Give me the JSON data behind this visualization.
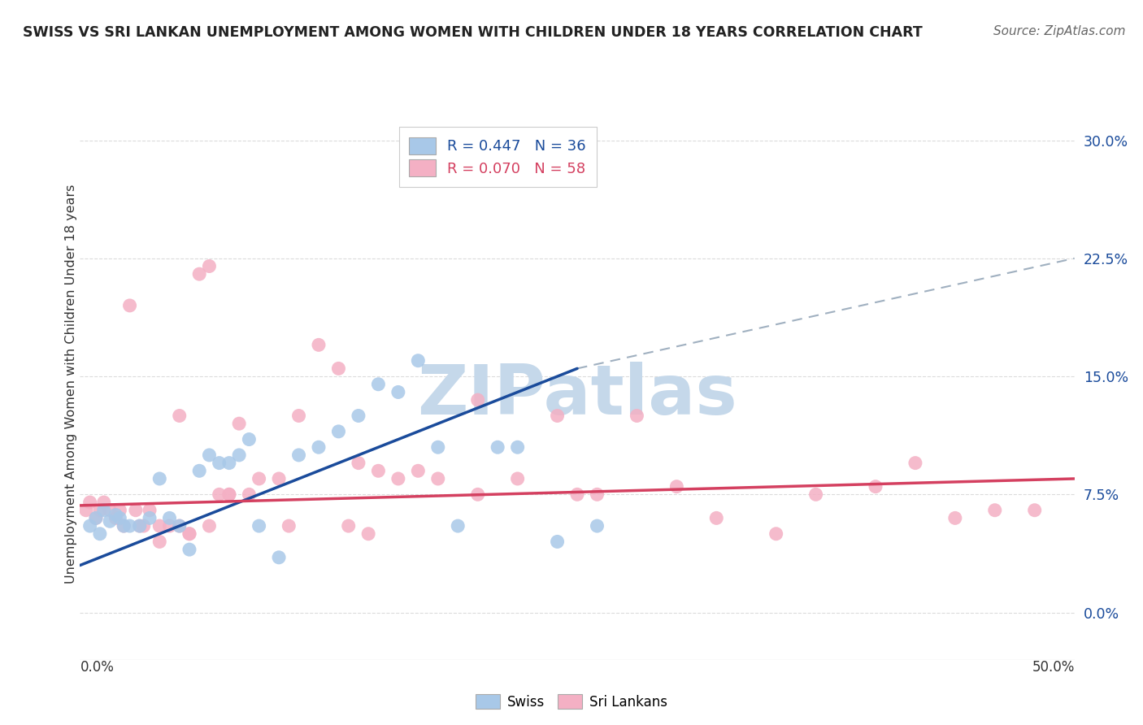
{
  "title": "SWISS VS SRI LANKAN UNEMPLOYMENT AMONG WOMEN WITH CHILDREN UNDER 18 YEARS CORRELATION CHART",
  "source": "Source: ZipAtlas.com",
  "ylabel": "Unemployment Among Women with Children Under 18 years",
  "xlim": [
    0,
    50
  ],
  "ylim": [
    -3,
    32
  ],
  "ytick_vals": [
    0.0,
    7.5,
    15.0,
    22.5,
    30.0
  ],
  "ytick_labels": [
    "0.0%",
    "7.5%",
    "15.0%",
    "22.5%",
    "30.0%"
  ],
  "swiss_color": "#a8c8e8",
  "sri_color": "#f4b0c4",
  "swiss_line_color": "#1a4b9b",
  "sri_line_color": "#d44060",
  "dashed_line_color": "#a0b0c0",
  "watermark_color": "#c5d8ea",
  "background_color": "#ffffff",
  "grid_color": "#cccccc",
  "title_color": "#222222",
  "source_color": "#666666",
  "label_color": "#1a4b9b",
  "swiss_x": [
    0.5,
    0.8,
    1.0,
    1.2,
    1.5,
    1.8,
    2.0,
    2.2,
    2.5,
    3.0,
    3.5,
    4.0,
    4.5,
    5.0,
    5.5,
    6.0,
    6.5,
    7.0,
    7.5,
    8.0,
    8.5,
    9.0,
    10.0,
    11.0,
    12.0,
    13.0,
    14.0,
    15.0,
    16.0,
    17.0,
    18.0,
    19.0,
    21.0,
    22.0,
    24.0,
    26.0
  ],
  "swiss_y": [
    5.5,
    6.0,
    5.0,
    6.5,
    5.8,
    6.2,
    6.0,
    5.5,
    5.5,
    5.5,
    6.0,
    8.5,
    6.0,
    5.5,
    4.0,
    9.0,
    10.0,
    9.5,
    9.5,
    10.0,
    11.0,
    5.5,
    3.5,
    10.0,
    10.5,
    11.5,
    12.5,
    14.5,
    14.0,
    16.0,
    10.5,
    5.5,
    10.5,
    10.5,
    4.5,
    5.5
  ],
  "sri_x": [
    0.3,
    0.5,
    0.8,
    1.0,
    1.2,
    1.5,
    1.8,
    2.0,
    2.2,
    2.5,
    2.8,
    3.0,
    3.2,
    3.5,
    4.0,
    4.5,
    5.0,
    5.5,
    6.0,
    6.5,
    7.0,
    7.5,
    8.0,
    9.0,
    10.0,
    11.0,
    12.0,
    13.0,
    14.0,
    15.0,
    16.0,
    17.0,
    18.0,
    20.0,
    22.0,
    24.0,
    25.0,
    26.0,
    28.0,
    30.0,
    32.0,
    35.0,
    37.0,
    40.0,
    42.0,
    44.0,
    46.0,
    48.0,
    4.0,
    5.0,
    5.5,
    6.5,
    7.5,
    8.5,
    10.5,
    13.5,
    14.5,
    20.0
  ],
  "sri_y": [
    6.5,
    7.0,
    6.0,
    6.5,
    7.0,
    6.5,
    6.0,
    6.5,
    5.5,
    19.5,
    6.5,
    5.5,
    5.5,
    6.5,
    5.5,
    5.5,
    12.5,
    5.0,
    21.5,
    22.0,
    7.5,
    7.5,
    12.0,
    8.5,
    8.5,
    12.5,
    17.0,
    15.5,
    9.5,
    9.0,
    8.5,
    9.0,
    8.5,
    7.5,
    8.5,
    12.5,
    7.5,
    7.5,
    12.5,
    8.0,
    6.0,
    5.0,
    7.5,
    8.0,
    9.5,
    6.0,
    6.5,
    6.5,
    4.5,
    5.5,
    5.0,
    5.5,
    7.5,
    7.5,
    5.5,
    5.5,
    5.0,
    13.5
  ],
  "swiss_line_start_x": 0,
  "swiss_line_start_y": 3.0,
  "swiss_line_end_x": 25,
  "swiss_line_end_y": 15.5,
  "sri_line_start_x": 0,
  "sri_line_start_y": 6.8,
  "sri_line_end_x": 50,
  "sri_line_end_y": 8.5,
  "dash_start_x": 25,
  "dash_start_y": 15.5,
  "dash_end_x": 50,
  "dash_end_y": 22.5
}
